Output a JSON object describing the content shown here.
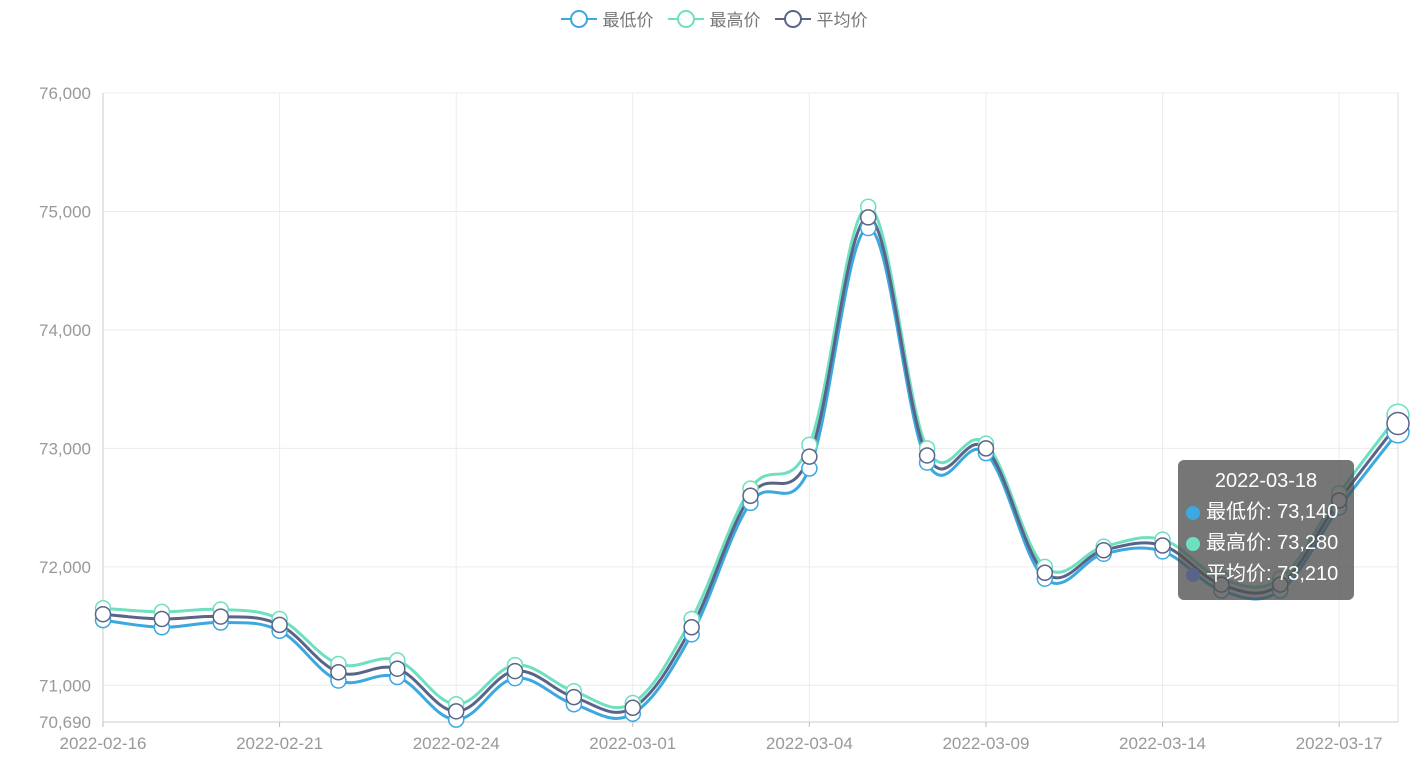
{
  "legend": [
    {
      "name": "最低价",
      "color": "#3ba8e0"
    },
    {
      "name": "最高价",
      "color": "#6ee0c0"
    },
    {
      "name": "平均价",
      "color": "#5a6488"
    }
  ],
  "tooltip": {
    "title": "2022-03-18",
    "rows": [
      {
        "label": "最低价: 73,140",
        "color": "#3ba8e0"
      },
      {
        "label": "最高价: 73,280",
        "color": "#6ee0c0"
      },
      {
        "label": "平均价: 73,210",
        "color": "#5a6488"
      }
    ]
  },
  "chart_data": {
    "type": "line",
    "title": "",
    "xlabel": "",
    "ylabel": "",
    "ylim": [
      70690,
      76000
    ],
    "yticks": [
      70690,
      71000,
      72000,
      73000,
      74000,
      75000,
      76000
    ],
    "ytick_labels": [
      "70,690",
      "71,000",
      "72,000",
      "73,000",
      "74,000",
      "75,000",
      "76,000"
    ],
    "xtick_labels": [
      "2022-02-16",
      "2022-02-21",
      "2022-02-24",
      "2022-03-01",
      "2022-03-04",
      "2022-03-09",
      "2022-03-14",
      "2022-03-17"
    ],
    "xtick_every": 3,
    "smooth": true,
    "grid": true,
    "legend_position": "top-center",
    "x": [
      "2022-02-16",
      "2022-02-17",
      "2022-02-18",
      "2022-02-21",
      "2022-02-22",
      "2022-02-23",
      "2022-02-24",
      "2022-02-25",
      "2022-02-28",
      "2022-03-01",
      "2022-03-02",
      "2022-03-03",
      "2022-03-04",
      "2022-03-07",
      "2022-03-08",
      "2022-03-09",
      "2022-03-10",
      "2022-03-11",
      "2022-03-14",
      "2022-03-15",
      "2022-03-16",
      "2022-03-17",
      "2022-03-18"
    ],
    "series": [
      {
        "name": "最低价",
        "color": "#3ba8e0",
        "values": [
          71550,
          71490,
          71530,
          71460,
          71040,
          71070,
          70710,
          71060,
          70840,
          70760,
          71430,
          72540,
          72830,
          74860,
          72880,
          72960,
          71900,
          72110,
          72130,
          71800,
          71800,
          72500,
          73140
        ]
      },
      {
        "name": "最高价",
        "color": "#6ee0c0",
        "values": [
          71650,
          71620,
          71640,
          71560,
          71180,
          71210,
          70840,
          71170,
          70950,
          70850,
          71560,
          72660,
          73030,
          75040,
          73000,
          73040,
          72000,
          72170,
          72230,
          71900,
          71900,
          72620,
          73280
        ]
      },
      {
        "name": "平均价",
        "color": "#5a6488",
        "values": [
          71600,
          71560,
          71580,
          71510,
          71110,
          71140,
          70780,
          71120,
          70900,
          70810,
          71490,
          72600,
          72930,
          74950,
          72940,
          73000,
          71950,
          72140,
          72180,
          71850,
          71850,
          72560,
          73210
        ]
      }
    ]
  }
}
